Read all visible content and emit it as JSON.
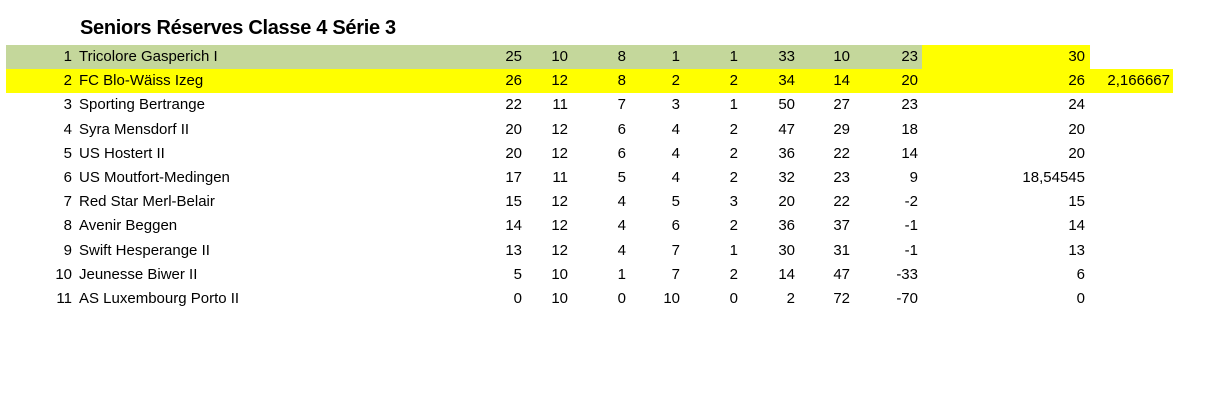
{
  "title": "Seniors Réserves Classe 4 Série 3",
  "colors": {
    "leader_row": "#c4d79b",
    "highlight": "#ffff00"
  },
  "rows": [
    {
      "rank": "1",
      "team": "Tricolore Gasperich I",
      "cols": [
        "25",
        "10",
        "8",
        "1",
        "1",
        "33",
        "10",
        "23"
      ],
      "points": "30",
      "extra": ""
    },
    {
      "rank": "2",
      "team": "FC Blo-Wäiss Izeg",
      "cols": [
        "26",
        "12",
        "8",
        "2",
        "2",
        "34",
        "14",
        "20"
      ],
      "points": "26",
      "extra": "2,166667"
    },
    {
      "rank": "3",
      "team": "Sporting Bertrange",
      "cols": [
        "22",
        "11",
        "7",
        "3",
        "1",
        "50",
        "27",
        "23"
      ],
      "points": "24",
      "extra": ""
    },
    {
      "rank": "4",
      "team": "Syra Mensdorf II",
      "cols": [
        "20",
        "12",
        "6",
        "4",
        "2",
        "47",
        "29",
        "18"
      ],
      "points": "20",
      "extra": ""
    },
    {
      "rank": "5",
      "team": "US Hostert II",
      "cols": [
        "20",
        "12",
        "6",
        "4",
        "2",
        "36",
        "22",
        "14"
      ],
      "points": "20",
      "extra": ""
    },
    {
      "rank": "6",
      "team": "US Moutfort-Medingen",
      "cols": [
        "17",
        "11",
        "5",
        "4",
        "2",
        "32",
        "23",
        "9"
      ],
      "points": "18,54545",
      "extra": ""
    },
    {
      "rank": "7",
      "team": "Red Star Merl-Belair",
      "cols": [
        "15",
        "12",
        "4",
        "5",
        "3",
        "20",
        "22",
        "-2"
      ],
      "points": "15",
      "extra": ""
    },
    {
      "rank": "8",
      "team": "Avenir Beggen",
      "cols": [
        "14",
        "12",
        "4",
        "6",
        "2",
        "36",
        "37",
        "-1"
      ],
      "points": "14",
      "extra": ""
    },
    {
      "rank": "9",
      "team": "Swift Hesperange II",
      "cols": [
        "13",
        "12",
        "4",
        "7",
        "1",
        "30",
        "31",
        "-1"
      ],
      "points": "13",
      "extra": ""
    },
    {
      "rank": "10",
      "team": "Jeunesse Biwer II",
      "cols": [
        "5",
        "10",
        "1",
        "7",
        "2",
        "14",
        "47",
        "-33"
      ],
      "points": "6",
      "extra": ""
    },
    {
      "rank": "11",
      "team": "AS Luxembourg Porto II",
      "cols": [
        "0",
        "10",
        "0",
        "10",
        "0",
        "2",
        "72",
        "-70"
      ],
      "points": "0",
      "extra": ""
    }
  ]
}
